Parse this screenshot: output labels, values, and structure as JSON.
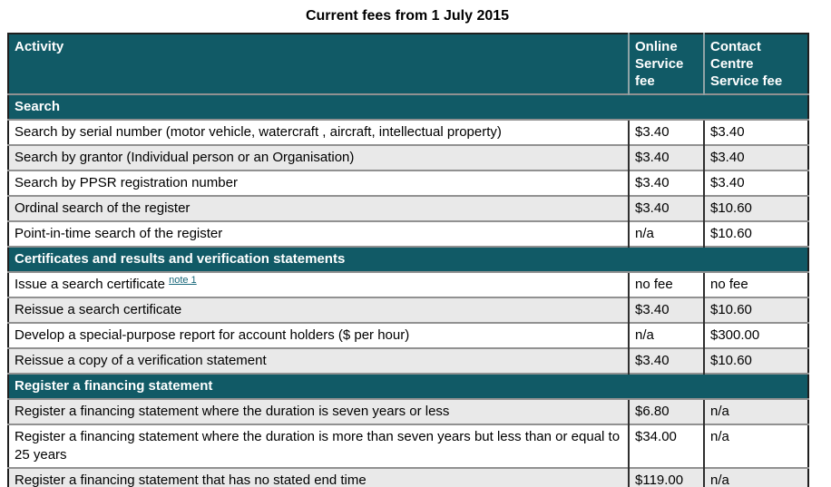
{
  "title": "Current fees from 1 July 2015",
  "colors": {
    "header_teal": "#115a66",
    "alt_row_gray": "#e9e9e9",
    "note_link_teal": "#17677a"
  },
  "table": {
    "columns": [
      "Activity",
      "Online Service fee",
      "Contact Centre Service fee"
    ],
    "sections": [
      {
        "header": "Search",
        "rows": [
          {
            "activity": "Search by serial number (motor vehicle, watercraft , aircraft, intellectual property)",
            "online": "$3.40",
            "contact": "$3.40"
          },
          {
            "activity": "Search by grantor (Individual person or an Organisation)",
            "online": "$3.40",
            "contact": "$3.40"
          },
          {
            "activity": "Search by PPSR registration number",
            "online": "$3.40",
            "contact": "$3.40"
          },
          {
            "activity": "Ordinal search of the register",
            "online": "$3.40",
            "contact": "$10.60"
          },
          {
            "activity": "Point-in-time search of the register",
            "online": "n/a",
            "contact": "$10.60"
          }
        ]
      },
      {
        "header": "Certificates and results and verification statements",
        "rows": [
          {
            "activity": "Issue a search certificate",
            "note": "note 1",
            "online": "no fee",
            "contact": "no fee"
          },
          {
            "activity": "Reissue a search certificate",
            "online": "$3.40",
            "contact": "$10.60"
          },
          {
            "activity": "Develop a special-purpose report for account holders ($ per hour)",
            "online": "n/a",
            "contact": "$300.00"
          },
          {
            "activity": "Reissue a copy of a verification statement",
            "online": "$3.40",
            "contact": "$10.60"
          }
        ]
      },
      {
        "header": "Register a financing statement",
        "rows": [
          {
            "activity": "Register a financing statement where the duration is seven years or less",
            "online": "$6.80",
            "contact": "n/a"
          },
          {
            "activity": "Register a financing statement where the duration is more than seven years but less than or equal to 25 years",
            "online": "$34.00",
            "contact": "n/a"
          },
          {
            "activity": "Register a financing statement that has no stated end time",
            "online": "$119.00",
            "contact": "n/a"
          }
        ]
      }
    ]
  }
}
